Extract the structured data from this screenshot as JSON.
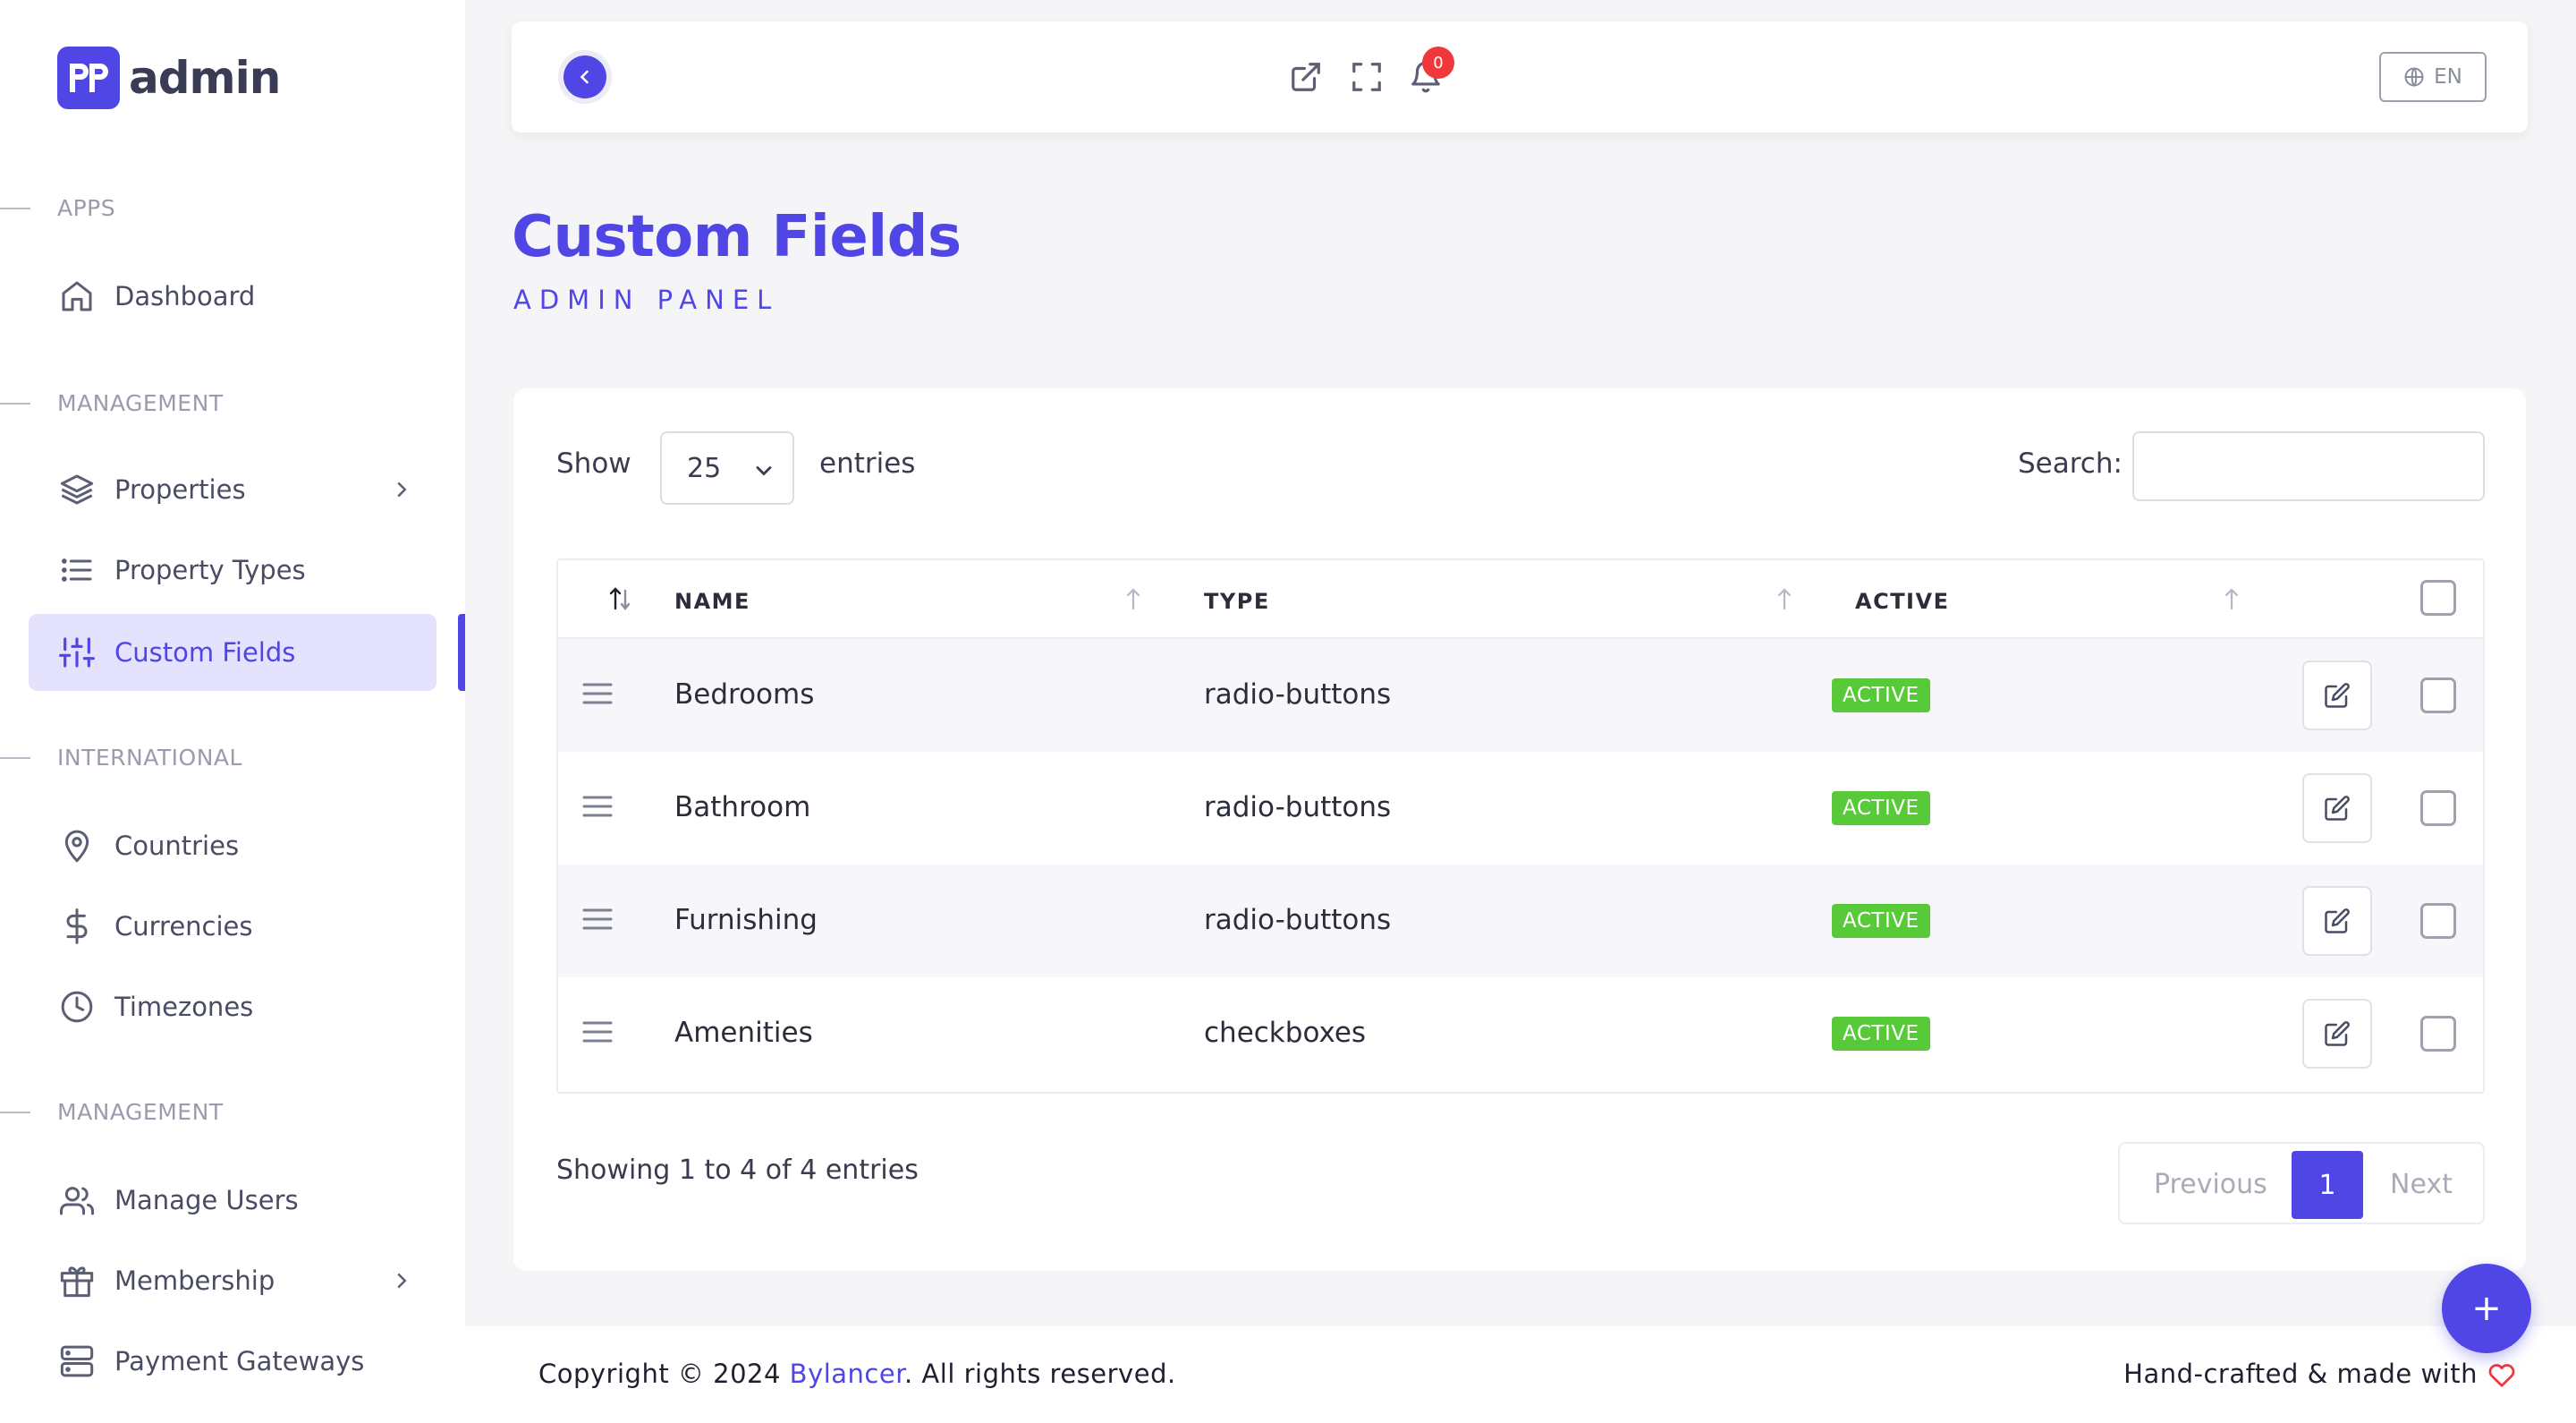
{
  "brand": {
    "name": "admin",
    "accent": "#4f46e5"
  },
  "sidebar": {
    "sections": [
      {
        "label": "APPS",
        "items": [
          {
            "label": "Dashboard",
            "icon": "home-icon"
          }
        ]
      },
      {
        "label": "MANAGEMENT",
        "items": [
          {
            "label": "Properties",
            "icon": "layers-icon",
            "has_submenu": true
          },
          {
            "label": "Property Types",
            "icon": "list-icon"
          },
          {
            "label": "Custom Fields",
            "icon": "sliders-icon",
            "active": true
          }
        ]
      },
      {
        "label": "INTERNATIONAL",
        "items": [
          {
            "label": "Countries",
            "icon": "map-pin-icon"
          },
          {
            "label": "Currencies",
            "icon": "dollar-icon"
          },
          {
            "label": "Timezones",
            "icon": "clock-icon"
          }
        ]
      },
      {
        "label": "MANAGEMENT",
        "items": [
          {
            "label": "Manage Users",
            "icon": "users-icon"
          },
          {
            "label": "Membership",
            "icon": "gift-icon",
            "has_submenu": true
          },
          {
            "label": "Payment Gateways",
            "icon": "server-icon"
          }
        ]
      }
    ]
  },
  "topbar": {
    "notification_count": "0",
    "language": "EN"
  },
  "page": {
    "title": "Custom Fields",
    "subtitle": "ADMIN PANEL"
  },
  "table_controls": {
    "show_label": "Show",
    "entries_value": "25",
    "entries_label": "entries",
    "search_label": "Search:",
    "search_value": ""
  },
  "table": {
    "columns": [
      "NAME",
      "TYPE",
      "ACTIVE"
    ],
    "rows": [
      {
        "name": "Bedrooms",
        "type": "radio-buttons",
        "status": "ACTIVE"
      },
      {
        "name": "Bathroom",
        "type": "radio-buttons",
        "status": "ACTIVE"
      },
      {
        "name": "Furnishing",
        "type": "radio-buttons",
        "status": "ACTIVE"
      },
      {
        "name": "Amenities",
        "type": "checkboxes",
        "status": "ACTIVE"
      }
    ]
  },
  "pagination": {
    "summary": "Showing 1 to 4 of 4 entries",
    "previous": "Previous",
    "current": "1",
    "next": "Next"
  },
  "footer": {
    "copyright_prefix": "Copyright © 2024 ",
    "company": "Bylancer",
    "copyright_suffix": ". All rights reserved.",
    "right_text": "Hand-crafted & made with"
  },
  "fab": {
    "label": "+"
  }
}
